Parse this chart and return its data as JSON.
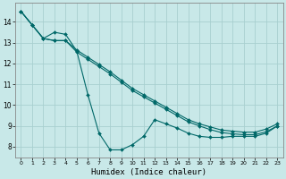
{
  "xlabel": "Humidex (Indice chaleur)",
  "bg_color": "#c8e8e8",
  "grid_color": "#a8d0d0",
  "line_color": "#006868",
  "xlim": [
    -0.5,
    23.5
  ],
  "ylim": [
    7.5,
    14.9
  ],
  "xticks": [
    0,
    1,
    2,
    3,
    4,
    5,
    6,
    7,
    8,
    9,
    10,
    11,
    12,
    13,
    14,
    15,
    16,
    17,
    18,
    19,
    20,
    21,
    22,
    23
  ],
  "yticks": [
    8,
    9,
    10,
    11,
    12,
    13,
    14
  ],
  "upper_x": [
    0,
    1,
    2,
    3,
    4,
    5,
    6,
    7,
    8,
    9,
    10,
    11,
    12,
    13,
    14,
    15,
    16,
    17,
    18,
    19,
    20,
    21,
    22,
    23
  ],
  "upper_y": [
    14.5,
    13.85,
    13.2,
    13.1,
    13.1,
    12.65,
    12.3,
    11.95,
    11.6,
    11.2,
    10.8,
    10.5,
    10.2,
    9.9,
    9.6,
    9.3,
    9.1,
    8.95,
    8.8,
    8.75,
    8.7,
    8.7,
    8.85,
    9.1
  ],
  "lower_x": [
    0,
    1,
    2,
    3,
    4,
    5,
    6,
    7,
    8,
    9,
    10,
    11,
    12,
    13,
    14,
    15,
    16,
    17,
    18,
    19,
    20,
    21,
    22,
    23
  ],
  "lower_y": [
    14.5,
    13.85,
    13.2,
    13.1,
    13.1,
    12.55,
    12.2,
    11.85,
    11.5,
    11.1,
    10.7,
    10.4,
    10.1,
    9.8,
    9.5,
    9.2,
    9.0,
    8.82,
    8.68,
    8.62,
    8.58,
    8.58,
    8.72,
    9.0
  ],
  "curved_x": [
    0,
    1,
    2,
    3,
    4,
    5,
    6,
    7,
    8,
    9,
    10,
    11,
    12,
    13,
    14,
    15,
    16,
    17,
    18,
    19,
    20,
    21,
    22,
    23
  ],
  "curved_y": [
    14.5,
    13.85,
    13.2,
    13.5,
    13.4,
    12.6,
    10.5,
    8.65,
    7.85,
    7.85,
    8.1,
    8.5,
    9.3,
    9.1,
    8.9,
    8.65,
    8.5,
    8.45,
    8.45,
    8.5,
    8.5,
    8.5,
    8.65,
    9.0
  ]
}
